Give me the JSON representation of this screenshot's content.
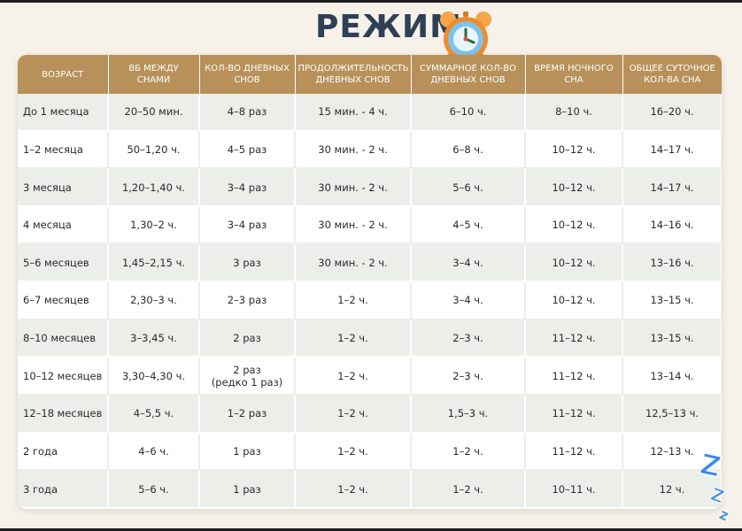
{
  "title": "РЕЖИМ",
  "icons": {
    "clock": "alarm-clock-icon",
    "sleep": "zzz-icon"
  },
  "colors": {
    "header_bg": "#b8915a",
    "title": "#2f3f55",
    "row_alt": "#eceee9"
  },
  "table": {
    "headers": [
      "ВОЗРАСТ",
      "ВБ МЕЖДУ СНАМИ",
      "КОЛ-ВО ДНЕВНЫХ СНОВ",
      "ПРОДОЛЖИТЕЛЬНОСТЬ ДНЕВНЫХ СНОВ",
      "СУММАРНОЕ КОЛ-ВО ДНЕВНЫХ СНОВ",
      "ВРЕМЯ НОЧНОГО СНА",
      "ОБЩЕЕ СУТОЧНОЕ КОЛ-ВА СНА"
    ],
    "rows": [
      [
        "До 1 месяца",
        "20–50 мин.",
        "4–8 раз",
        "15 мин. - 4 ч.",
        "6–10 ч.",
        "8–10 ч.",
        "16–20 ч."
      ],
      [
        "1–2 месяца",
        "50–1,20 ч.",
        "4–5 раз",
        "30 мин. - 2 ч.",
        "6–8 ч.",
        "10–12 ч.",
        "14–17 ч."
      ],
      [
        "3 месяца",
        "1,20–1,40 ч.",
        "3–4 раз",
        "30 мин. - 2 ч.",
        "5–6 ч.",
        "10–12 ч.",
        "14–17 ч."
      ],
      [
        "4 месяца",
        "1,30–2 ч.",
        "3–4 раз",
        "30 мин. - 2 ч.",
        "4–5 ч.",
        "10–12 ч.",
        "14–16 ч."
      ],
      [
        "5–6 месяцев",
        "1,45–2,15 ч.",
        "3 раз",
        "30 мин. - 2 ч.",
        "3–4 ч.",
        "10–12 ч.",
        "13–16 ч."
      ],
      [
        "6–7 месяцев",
        "2,30–3 ч.",
        "2–3 раз",
        "1–2 ч.",
        "3–4 ч.",
        "10–12 ч.",
        "13–15 ч."
      ],
      [
        "8–10 месяцев",
        "3–3,45 ч.",
        "2 раз",
        "1–2 ч.",
        "2–3 ч.",
        "11–12 ч.",
        "13–15 ч."
      ],
      [
        "10–12 месяцев",
        "3,30–4,30 ч.",
        "2 раз",
        "1–2 ч.",
        "2–3 ч.",
        "11–12 ч.",
        "13–14 ч."
      ],
      [
        "12–18 месяцев",
        "4–5,5 ч.",
        "1–2 раз",
        "1–2 ч.",
        "1,5–3 ч.",
        "11–12 ч.",
        "12,5–13 ч."
      ],
      [
        "2 года",
        "4–6 ч.",
        "1 раз",
        "1–2 ч.",
        "1–2 ч.",
        "11–12 ч.",
        "12–13 ч."
      ],
      [
        "3 года",
        "5–6 ч.",
        "1 раз",
        "1–2 ч.",
        "1–2 ч.",
        "10–11 ч.",
        "12 ч."
      ]
    ],
    "note_row_index": 7,
    "note_text": "(редко 1 раз)"
  }
}
